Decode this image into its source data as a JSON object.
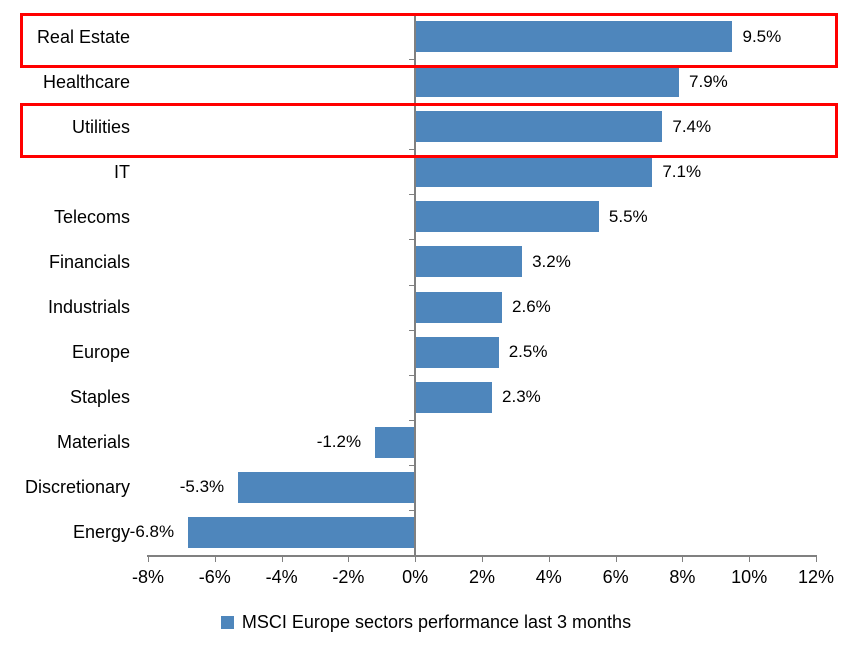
{
  "chart_data": {
    "type": "bar",
    "orientation": "horizontal",
    "title": "",
    "categories": [
      "Real Estate",
      "Healthcare",
      "Utilities",
      "IT",
      "Telecoms",
      "Financials",
      "Industrials",
      "Europe",
      "Staples",
      "Materials",
      "Discretionary",
      "Energy"
    ],
    "values": [
      9.5,
      7.9,
      7.4,
      7.1,
      5.5,
      3.2,
      2.6,
      2.5,
      2.3,
      -1.2,
      -5.3,
      -6.8
    ],
    "value_labels": [
      "9.5%",
      "7.9%",
      "7.4%",
      "7.1%",
      "5.5%",
      "3.2%",
      "2.6%",
      "2.5%",
      "2.3%",
      "-1.2%",
      "-5.3%",
      "-6.8%"
    ],
    "x_ticks": [
      "-8%",
      "-6%",
      "-4%",
      "-2%",
      "0%",
      "2%",
      "4%",
      "6%",
      "8%",
      "10%",
      "12%"
    ],
    "x_tick_values": [
      -8,
      -6,
      -4,
      -2,
      0,
      2,
      4,
      6,
      8,
      10,
      12
    ],
    "xlim": [
      -8,
      12
    ],
    "grid": false,
    "legend_position": "bottom",
    "legend_label": "MSCI Europe sectors performance last 3 months",
    "highlighted_categories": [
      "Real Estate",
      "Utilities"
    ],
    "colors": {
      "bar": "#4E86BC",
      "highlight_box": "#FF0000",
      "axis": "#808080",
      "text": "#000000"
    }
  }
}
